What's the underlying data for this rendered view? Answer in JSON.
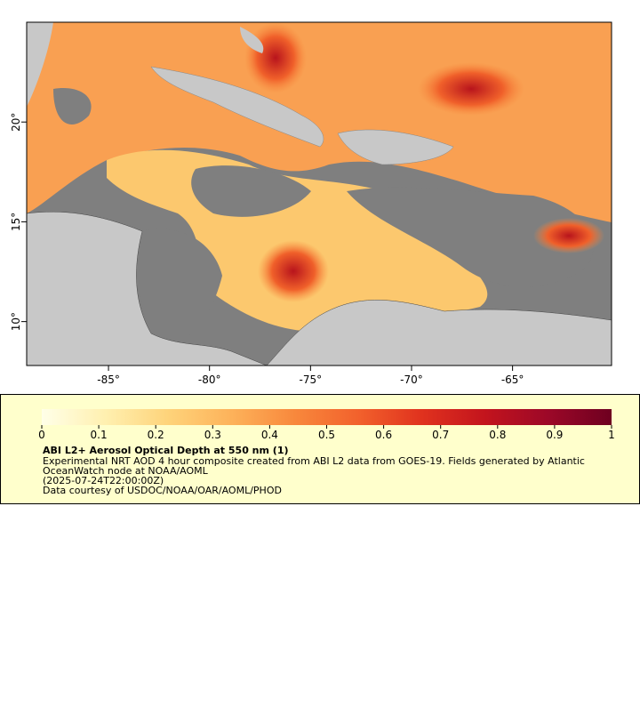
{
  "map": {
    "xlim": [
      -89.05,
      -60.1
    ],
    "ylim": [
      7.8,
      25.0
    ],
    "xticks": [
      {
        "value": -85,
        "label": "-85°"
      },
      {
        "value": -80,
        "label": "-80°"
      },
      {
        "value": -75,
        "label": "-75°"
      },
      {
        "value": -70,
        "label": "-70°"
      },
      {
        "value": -65,
        "label": "-65°"
      }
    ],
    "yticks": [
      {
        "value": 10,
        "label": "10°"
      },
      {
        "value": 15,
        "label": "15°"
      },
      {
        "value": 20,
        "label": "20°"
      }
    ]
  },
  "colorbar": {
    "lim": [
      0,
      1
    ],
    "ticks": [
      0,
      0.1,
      0.2,
      0.3,
      0.4,
      0.5,
      0.6,
      0.7,
      0.8,
      0.9,
      1
    ],
    "colors": [
      "#ffffe8",
      "#fff0b0",
      "#fed37a",
      "#fdb25a",
      "#f8883c",
      "#f2612c",
      "#e0321e",
      "#c3141d",
      "#9c0828",
      "#6e0020"
    ]
  },
  "legend": {
    "title": "ABI L2+ Aerosol Optical Depth at 550 nm (1)",
    "lines": [
      "Experimental NRT AOD 4 hour composite created from ABI L2 data from GOES-19. Fields generated by Atlantic",
      "OceanWatch node at NOAA/AOML",
      "(2025-07-24T22:00:00Z)",
      "Data courtesy of USDOC/NOAA/OAR/AOML/PHOD"
    ]
  }
}
